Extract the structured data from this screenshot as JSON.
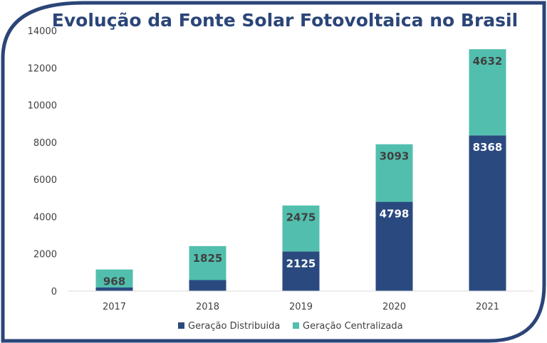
{
  "chart_data": {
    "type": "bar",
    "stacked": true,
    "title": "Evolução da Fonte Solar Fotovoltaica no Brasil",
    "categories": [
      "2017",
      "2018",
      "2019",
      "2020",
      "2021"
    ],
    "series": [
      {
        "name": "Geração Distribuida",
        "values": [
          192,
          592,
          2125,
          4798,
          8368
        ],
        "color": "#2a4a7f",
        "label_color": "#ffffff"
      },
      {
        "name": "Geração Centralizada",
        "values": [
          968,
          1825,
          2475,
          3093,
          4632
        ],
        "color": "#52bfae",
        "label_color": "#404040"
      }
    ],
    "ylim": [
      0,
      14000
    ],
    "yticks": [
      "0",
      "2000",
      "4000",
      "6000",
      "8000",
      "10000",
      "12000",
      "14000"
    ],
    "grid": false,
    "legend_position": "bottom"
  },
  "colors": {
    "frame": "#2b4578",
    "title": "#2b4578",
    "axis": "#d9d9d9",
    "tick_text": "#404040"
  }
}
